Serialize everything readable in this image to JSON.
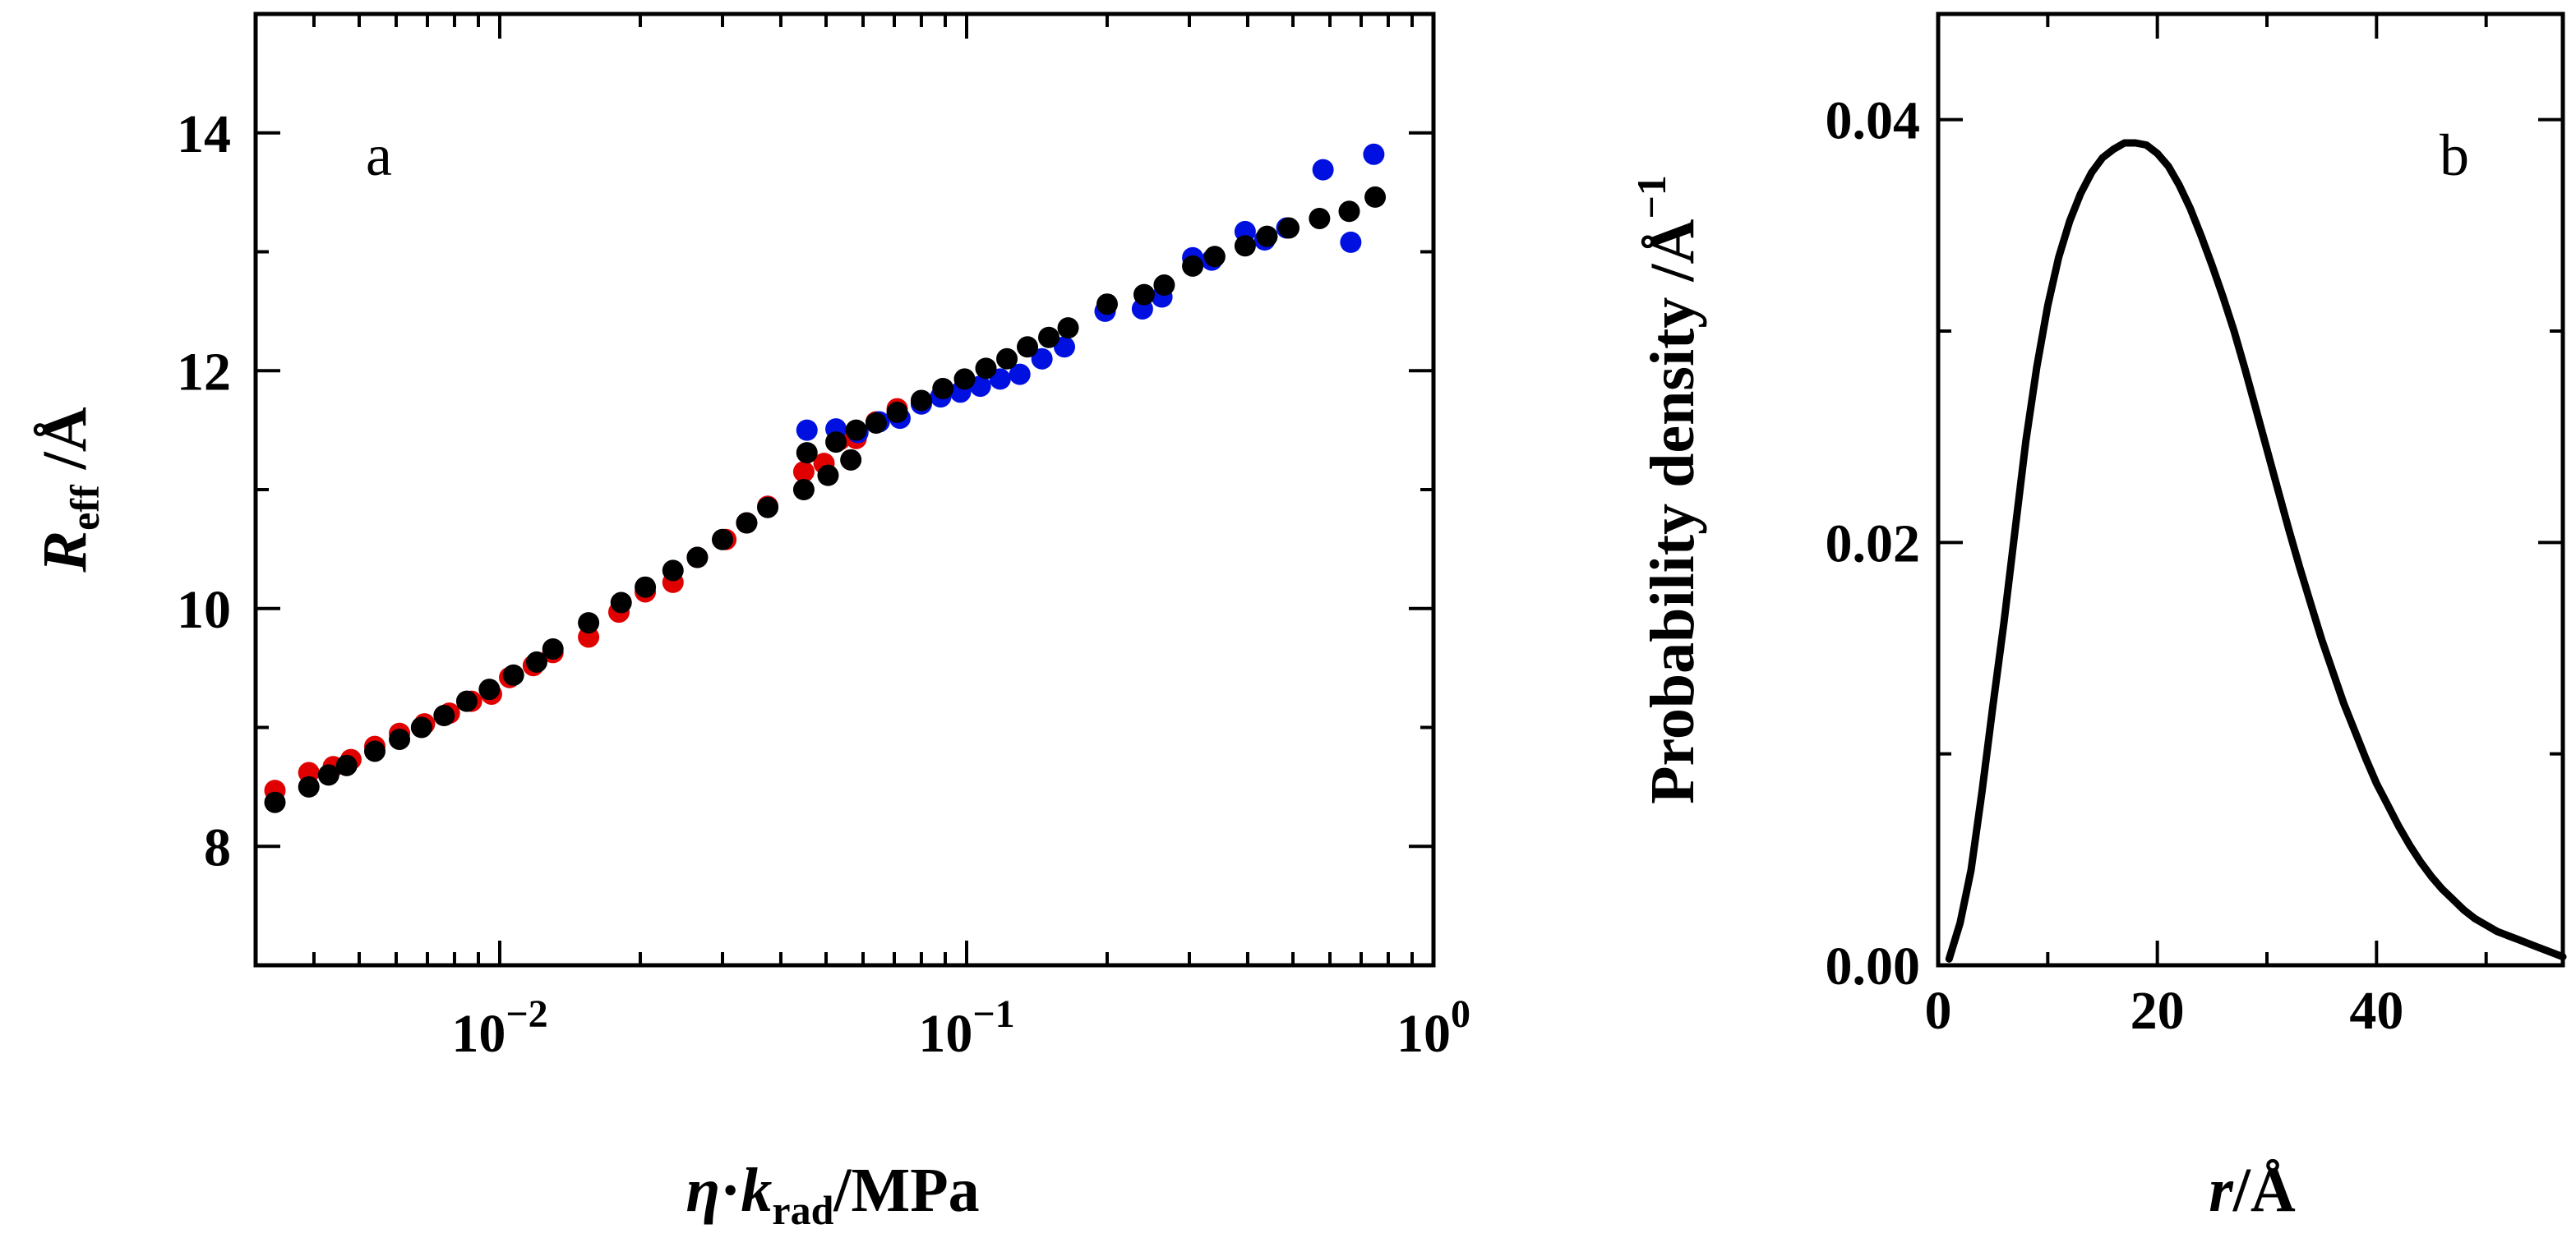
{
  "chart_data": [
    {
      "panel_label": "a",
      "type": "scatter",
      "x_scale": "log",
      "xlim": [
        0.003,
        1.0
      ],
      "ylim": [
        7,
        15
      ],
      "xlabel": {
        "eta": "η",
        "dot": "·",
        "k": "k",
        "sub": "rad",
        "unit": "/MPa"
      },
      "ylabel": {
        "r": "R",
        "sub": "eff",
        "unit": " /Å"
      },
      "x_tick_labels": [
        {
          "value": 0.01,
          "base": "10",
          "exp": "−2"
        },
        {
          "value": 0.1,
          "base": "10",
          "exp": "−1"
        },
        {
          "value": 1.0,
          "base": "10",
          "exp": "0"
        }
      ],
      "y_tick_labels": [
        {
          "value": 8,
          "text": "8"
        },
        {
          "value": 10,
          "text": "10"
        },
        {
          "value": 12,
          "text": "12"
        },
        {
          "value": 14,
          "text": "14"
        }
      ],
      "series": [
        {
          "name": "red",
          "color": "#e00000",
          "points": [
            [
              0.0033,
              8.47
            ],
            [
              0.0039,
              8.62
            ],
            [
              0.0044,
              8.67
            ],
            [
              0.0048,
              8.73
            ],
            [
              0.0054,
              8.84
            ],
            [
              0.0061,
              8.95
            ],
            [
              0.0069,
              9.03
            ],
            [
              0.0078,
              9.12
            ],
            [
              0.0087,
              9.22
            ],
            [
              0.0096,
              9.28
            ],
            [
              0.0105,
              9.42
            ],
            [
              0.0118,
              9.52
            ],
            [
              0.013,
              9.63
            ],
            [
              0.0155,
              9.76
            ],
            [
              0.018,
              9.97
            ],
            [
              0.0205,
              10.14
            ],
            [
              0.0235,
              10.22
            ],
            [
              0.0265,
              10.43
            ],
            [
              0.0305,
              10.58
            ],
            [
              0.0338,
              10.72
            ],
            [
              0.0375,
              10.86
            ],
            [
              0.0448,
              11.15
            ],
            [
              0.0495,
              11.22
            ],
            [
              0.0535,
              11.42
            ],
            [
              0.058,
              11.43
            ],
            [
              0.064,
              11.57
            ],
            [
              0.071,
              11.68
            ]
          ]
        },
        {
          "name": "blue",
          "color": "#0010e0",
          "points": [
            [
              0.0455,
              11.5
            ],
            [
              0.0525,
              11.51
            ],
            [
              0.0585,
              11.48
            ],
            [
              0.065,
              11.57
            ],
            [
              0.072,
              11.6
            ],
            [
              0.08,
              11.72
            ],
            [
              0.088,
              11.78
            ],
            [
              0.097,
              11.82
            ],
            [
              0.107,
              11.87
            ],
            [
              0.118,
              11.93
            ],
            [
              0.13,
              11.97
            ],
            [
              0.145,
              12.1
            ],
            [
              0.162,
              12.2
            ],
            [
              0.198,
              12.5
            ],
            [
              0.238,
              12.52
            ],
            [
              0.262,
              12.62
            ],
            [
              0.305,
              12.95
            ],
            [
              0.335,
              12.93
            ],
            [
              0.395,
              13.17
            ],
            [
              0.435,
              13.1
            ],
            [
              0.485,
              13.2
            ],
            [
              0.58,
              13.69
            ],
            [
              0.665,
              13.08
            ],
            [
              0.745,
              13.82
            ]
          ]
        },
        {
          "name": "black",
          "color": "#000000",
          "points": [
            [
              0.0033,
              8.37
            ],
            [
              0.0039,
              8.5
            ],
            [
              0.0043,
              8.6
            ],
            [
              0.0047,
              8.68
            ],
            [
              0.0054,
              8.8
            ],
            [
              0.0061,
              8.9
            ],
            [
              0.0068,
              9.0
            ],
            [
              0.0076,
              9.1
            ],
            [
              0.0085,
              9.22
            ],
            [
              0.0095,
              9.32
            ],
            [
              0.0107,
              9.44
            ],
            [
              0.012,
              9.55
            ],
            [
              0.013,
              9.66
            ],
            [
              0.0155,
              9.88
            ],
            [
              0.0182,
              10.05
            ],
            [
              0.0205,
              10.18
            ],
            [
              0.0235,
              10.32
            ],
            [
              0.0265,
              10.43
            ],
            [
              0.03,
              10.58
            ],
            [
              0.0338,
              10.72
            ],
            [
              0.0375,
              10.85
            ],
            [
              0.0448,
              11.0
            ],
            [
              0.0455,
              11.31
            ],
            [
              0.0505,
              11.12
            ],
            [
              0.0525,
              11.4
            ],
            [
              0.0565,
              11.25
            ],
            [
              0.058,
              11.5
            ],
            [
              0.064,
              11.56
            ],
            [
              0.071,
              11.65
            ],
            [
              0.08,
              11.75
            ],
            [
              0.089,
              11.85
            ],
            [
              0.099,
              11.93
            ],
            [
              0.11,
              12.02
            ],
            [
              0.122,
              12.1
            ],
            [
              0.135,
              12.2
            ],
            [
              0.15,
              12.28
            ],
            [
              0.165,
              12.36
            ],
            [
              0.2,
              12.56
            ],
            [
              0.24,
              12.64
            ],
            [
              0.265,
              12.72
            ],
            [
              0.305,
              12.88
            ],
            [
              0.34,
              12.96
            ],
            [
              0.395,
              13.05
            ],
            [
              0.44,
              13.13
            ],
            [
              0.49,
              13.2
            ],
            [
              0.57,
              13.28
            ],
            [
              0.66,
              13.34
            ],
            [
              0.75,
              13.46
            ]
          ]
        }
      ]
    },
    {
      "panel_label": "b",
      "type": "line",
      "xlim": [
        0,
        57
      ],
      "ylim": [
        0,
        0.045
      ],
      "xlabel": {
        "r": "r",
        "unit": "/Å"
      },
      "ylabel": "Probability density /Å",
      "ylabel_exp": "−1",
      "x_tick_labels": [
        {
          "value": 0,
          "text": "0"
        },
        {
          "value": 20,
          "text": "20"
        },
        {
          "value": 40,
          "text": "40"
        }
      ],
      "y_tick_labels": [
        {
          "value": 0.0,
          "text": "0.00"
        },
        {
          "value": 0.02,
          "text": "0.02"
        },
        {
          "value": 0.04,
          "text": "0.04"
        }
      ],
      "series": [
        {
          "name": "density",
          "color": "#000000",
          "x": [
            1,
            2,
            3,
            4,
            5,
            6,
            7,
            8,
            9,
            10,
            11,
            12,
            13,
            14,
            15,
            16,
            17,
            18,
            19,
            20,
            21,
            22,
            23,
            24,
            25,
            26,
            27,
            28,
            29,
            30,
            31,
            32,
            33,
            34,
            35,
            36,
            37,
            38,
            39,
            40,
            41,
            42,
            43,
            44,
            45,
            46,
            47,
            48,
            49,
            50,
            51,
            52,
            53,
            54,
            55,
            56,
            57
          ],
          "values": [
            0.0003,
            0.002,
            0.0045,
            0.0082,
            0.0123,
            0.0162,
            0.0205,
            0.0248,
            0.0283,
            0.0312,
            0.0335,
            0.0352,
            0.0365,
            0.0375,
            0.0382,
            0.0386,
            0.0389,
            0.0389,
            0.0388,
            0.0384,
            0.0378,
            0.0369,
            0.0358,
            0.0345,
            0.0331,
            0.0316,
            0.03,
            0.0282,
            0.0263,
            0.0244,
            0.0225,
            0.0206,
            0.0188,
            0.0171,
            0.0154,
            0.0139,
            0.0124,
            0.0111,
            0.0098,
            0.0086,
            0.0076,
            0.0066,
            0.0057,
            0.0049,
            0.0042,
            0.0036,
            0.0031,
            0.0026,
            0.0022,
            0.0019,
            0.0016,
            0.0014,
            0.0012,
            0.001,
            0.0008,
            0.0006,
            0.0004
          ]
        }
      ]
    }
  ]
}
